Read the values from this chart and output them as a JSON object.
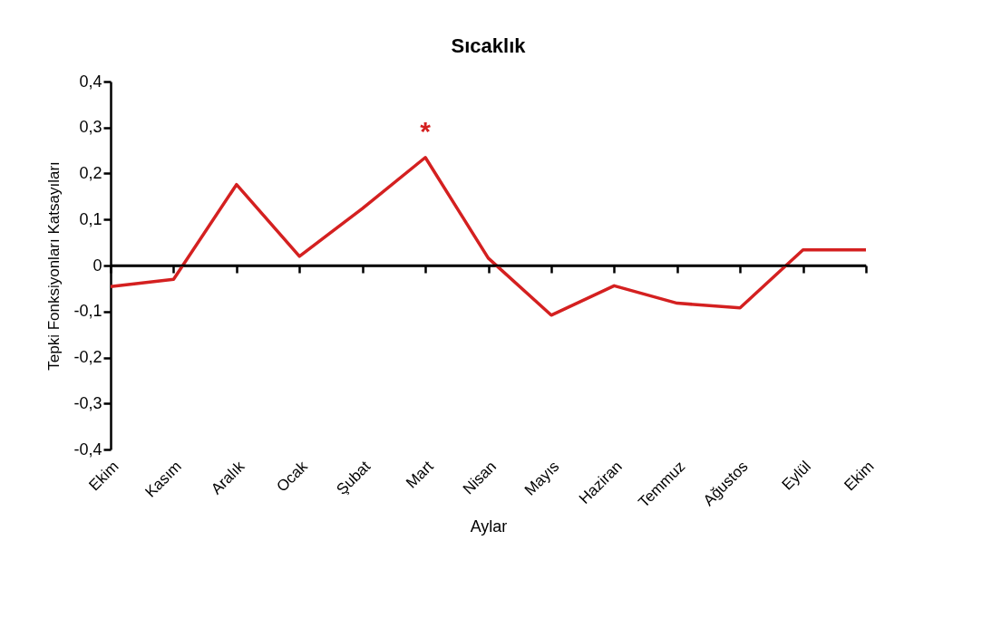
{
  "chart_data": {
    "type": "line",
    "title": "Sıcaklık",
    "xlabel": "Aylar",
    "ylabel": "Tepki Fonksiyonları Katsayıları",
    "categories": [
      "Ekim",
      "Kasım",
      "Aralık",
      "Ocak",
      "Şubat",
      "Mart",
      "Nisan",
      "Mayıs",
      "Haziran",
      "Temmuz",
      "Ağustos",
      "Eylül",
      "Ekim"
    ],
    "series": [
      {
        "color": "#d42020",
        "values": [
          -0.046,
          -0.03,
          0.176,
          0.02,
          0.124,
          0.235,
          0.016,
          -0.108,
          -0.044,
          -0.082,
          -0.092,
          0.034,
          0.034
        ]
      }
    ],
    "ylim": [
      -0.4,
      0.4
    ],
    "yticks": [
      {
        "value": -0.4,
        "label": "-0,4"
      },
      {
        "value": -0.3,
        "label": "-0,3"
      },
      {
        "value": -0.2,
        "label": "-0,2"
      },
      {
        "value": -0.1,
        "label": "-0,1"
      },
      0,
      {
        "value": 0.1,
        "label": "0,1"
      },
      {
        "value": 0.2,
        "label": "0,2"
      },
      {
        "value": 0.3,
        "label": "0,3"
      },
      {
        "value": 0.4,
        "label": "0,4"
      }
    ],
    "annotations": [
      "*"
    ],
    "marker": "none",
    "line_style": "solid"
  }
}
